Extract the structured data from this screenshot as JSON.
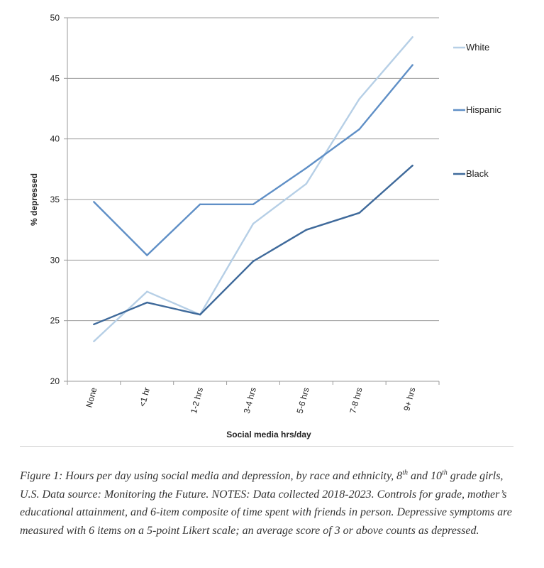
{
  "chart_data": {
    "type": "line",
    "xlabel": "Social media hrs/day",
    "ylabel": "% depressed",
    "categories": [
      "None",
      "<1 hr",
      "1-2 hrs",
      "3-4 hrs",
      "5-6 hrs",
      "7-8 hrs",
      "9+ hrs"
    ],
    "ylim": [
      20,
      50
    ],
    "yticks": [
      20,
      25,
      30,
      35,
      40,
      45,
      50
    ],
    "grid": true,
    "legend_position": "right",
    "series": [
      {
        "name": "White",
        "color": "#b6cfe6",
        "values": [
          23.3,
          27.4,
          25.5,
          33.0,
          36.3,
          43.3,
          48.4
        ]
      },
      {
        "name": "Hispanic",
        "color": "#5f8fc6",
        "values": [
          34.8,
          30.4,
          34.6,
          34.6,
          37.6,
          40.8,
          46.1
        ]
      },
      {
        "name": "Black",
        "color": "#3f6a9b",
        "values": [
          24.7,
          26.5,
          25.5,
          29.9,
          32.5,
          33.9,
          37.8
        ]
      }
    ]
  },
  "caption": {
    "part1": "Figure 1: Hours per day using social media and depression, by race and ethnicity, 8",
    "sup1": "th",
    "part2": " and 10",
    "sup2": "th",
    "part3": " grade girls, U.S. Data source: Monitoring the Future. NOTES: Data collected 2018-2023. Controls for grade, mother’s educational attainment, and 6-item composite of time spent with friends in person. Depressive symptoms are measured with 6 items on a 5-point Likert scale; an average score of 3 or above counts as depressed."
  }
}
